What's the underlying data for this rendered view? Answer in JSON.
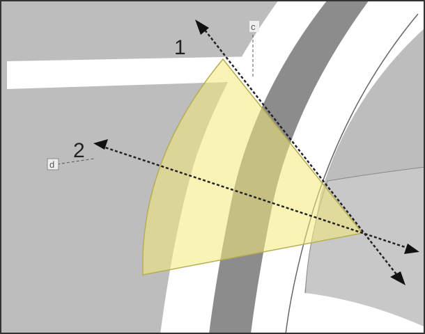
{
  "labels": {
    "arrow_1": "1",
    "arrow_2": "2",
    "marker_c": "c",
    "marker_d": "d"
  }
}
